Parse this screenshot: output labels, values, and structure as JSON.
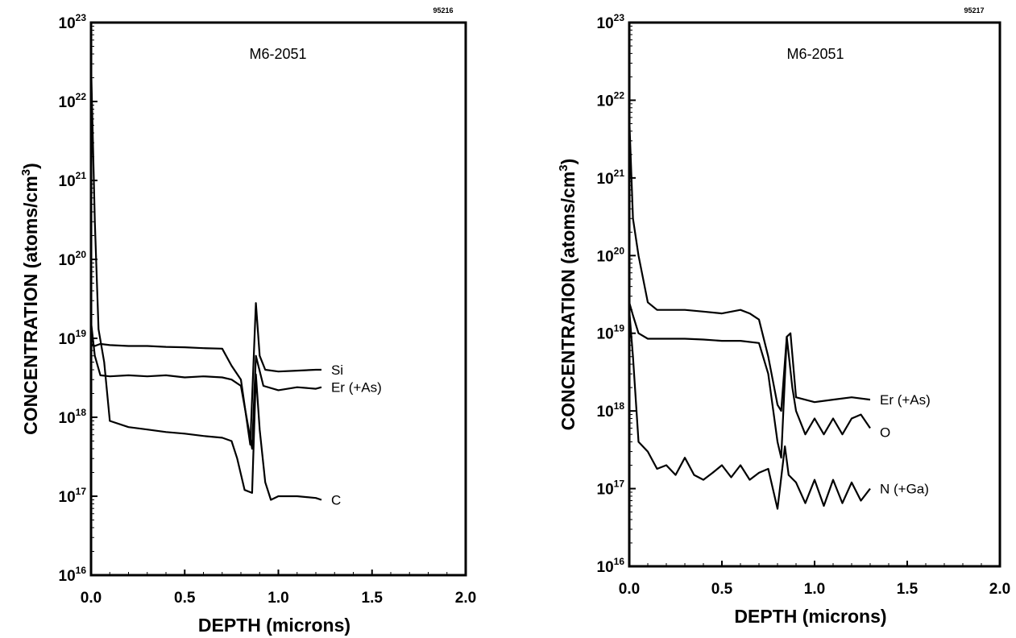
{
  "chart_data": [
    {
      "type": "line",
      "title": "M6-2051",
      "figure_id": "95216",
      "xlabel": "DEPTH (microns)",
      "ylabel": "CONCENTRATION (atoms/cm3)",
      "y_scale": "log",
      "xlim": [
        0,
        2.0
      ],
      "ylim": [
        1e+16,
        1e+23
      ],
      "x_ticks": [
        "0.0",
        "0.5",
        "1.0",
        "1.5",
        "2.0"
      ],
      "x_tick_values": [
        0,
        0.5,
        1.0,
        1.5,
        2.0
      ],
      "y_ticks": [
        {
          "base": "10",
          "exp": "16",
          "value": 1e+16
        },
        {
          "base": "10",
          "exp": "17",
          "value": 1e+17
        },
        {
          "base": "10",
          "exp": "18",
          "value": 1e+18
        },
        {
          "base": "10",
          "exp": "19",
          "value": 1e+19
        },
        {
          "base": "10",
          "exp": "20",
          "value": 1e+20
        },
        {
          "base": "10",
          "exp": "21",
          "value": 1e+21
        },
        {
          "base": "10",
          "exp": "22",
          "value": 1e+22
        },
        {
          "base": "10",
          "exp": "23",
          "value": 1e+23
        }
      ],
      "grid": false,
      "series": [
        {
          "name": "Si",
          "points": [
            [
              0.0,
              8.5e+18
            ],
            [
              0.02,
              8e+18
            ],
            [
              0.05,
              8.5e+18
            ],
            [
              0.1,
              8.2e+18
            ],
            [
              0.2,
              8e+18
            ],
            [
              0.3,
              8e+18
            ],
            [
              0.4,
              7.8e+18
            ],
            [
              0.5,
              7.7e+18
            ],
            [
              0.6,
              7.5e+18
            ],
            [
              0.7,
              7.4e+18
            ],
            [
              0.75,
              4.5e+18
            ],
            [
              0.8,
              3e+18
            ],
            [
              0.85,
              4.5e+17
            ],
            [
              0.88,
              2.8e+19
            ],
            [
              0.9,
              6e+18
            ],
            [
              0.93,
              4e+18
            ],
            [
              1.0,
              3.8e+18
            ],
            [
              1.1,
              3.9e+18
            ],
            [
              1.2,
              4e+18
            ],
            [
              1.23,
              4e+18
            ]
          ]
        },
        {
          "name": "Er (+As)",
          "points": [
            [
              0.0,
              1.6e+19
            ],
            [
              0.02,
              6e+18
            ],
            [
              0.05,
              3.4e+18
            ],
            [
              0.1,
              3.3e+18
            ],
            [
              0.2,
              3.4e+18
            ],
            [
              0.3,
              3.3e+18
            ],
            [
              0.4,
              3.4e+18
            ],
            [
              0.5,
              3.2e+18
            ],
            [
              0.6,
              3.3e+18
            ],
            [
              0.7,
              3.2e+18
            ],
            [
              0.75,
              3e+18
            ],
            [
              0.8,
              2.5e+18
            ],
            [
              0.83,
              1e+18
            ],
            [
              0.86,
              4e+17
            ],
            [
              0.88,
              6e+18
            ],
            [
              0.92,
              2.5e+18
            ],
            [
              1.0,
              2.2e+18
            ],
            [
              1.1,
              2.4e+18
            ],
            [
              1.2,
              2.3e+18
            ],
            [
              1.23,
              2.4e+18
            ]
          ]
        },
        {
          "name": "C",
          "points": [
            [
              0.0,
              3e+22
            ],
            [
              0.02,
              3e+20
            ],
            [
              0.04,
              1.3e+19
            ],
            [
              0.07,
              5e+18
            ],
            [
              0.1,
              9e+17
            ],
            [
              0.2,
              7.5e+17
            ],
            [
              0.3,
              7e+17
            ],
            [
              0.4,
              6.5e+17
            ],
            [
              0.5,
              6.2e+17
            ],
            [
              0.6,
              5.8e+17
            ],
            [
              0.7,
              5.5e+17
            ],
            [
              0.75,
              5e+17
            ],
            [
              0.78,
              3e+17
            ],
            [
              0.82,
              1.2e+17
            ],
            [
              0.86,
              1.1e+17
            ],
            [
              0.88,
              3.5e+18
            ],
            [
              0.9,
              7e+17
            ],
            [
              0.93,
              1.5e+17
            ],
            [
              0.96,
              9e+16
            ],
            [
              1.0,
              1e+17
            ],
            [
              1.1,
              1e+17
            ],
            [
              1.2,
              9.5e+16
            ],
            [
              1.23,
              9e+16
            ]
          ]
        }
      ]
    },
    {
      "type": "line",
      "title": "M6-2051",
      "figure_id": "95217",
      "xlabel": "DEPTH (microns)",
      "ylabel": "CONCENTRATION (atoms/cm3)",
      "y_scale": "log",
      "xlim": [
        0,
        2.0
      ],
      "ylim": [
        1e+16,
        1e+23
      ],
      "x_ticks": [
        "0.0",
        "0.5",
        "1.0",
        "1.5",
        "2.0"
      ],
      "x_tick_values": [
        0,
        0.5,
        1.0,
        1.5,
        2.0
      ],
      "y_ticks": [
        {
          "base": "10",
          "exp": "16",
          "value": 1e+16
        },
        {
          "base": "10",
          "exp": "17",
          "value": 1e+17
        },
        {
          "base": "10",
          "exp": "18",
          "value": 1e+18
        },
        {
          "base": "10",
          "exp": "19",
          "value": 1e+19
        },
        {
          "base": "10",
          "exp": "20",
          "value": 1e+20
        },
        {
          "base": "10",
          "exp": "21",
          "value": 1e+21
        },
        {
          "base": "10",
          "exp": "22",
          "value": 1e+22
        },
        {
          "base": "10",
          "exp": "23",
          "value": 1e+23
        }
      ],
      "grid": false,
      "series": [
        {
          "name": "Er (+As)",
          "points": [
            [
              0.0,
              6e+21
            ],
            [
              0.02,
              3e+20
            ],
            [
              0.05,
              1e+20
            ],
            [
              0.1,
              2.5e+19
            ],
            [
              0.15,
              2e+19
            ],
            [
              0.2,
              2e+19
            ],
            [
              0.3,
              2e+19
            ],
            [
              0.4,
              1.9e+19
            ],
            [
              0.5,
              1.8e+19
            ],
            [
              0.6,
              2e+19
            ],
            [
              0.65,
              1.8e+19
            ],
            [
              0.7,
              1.5e+19
            ],
            [
              0.75,
              5e+18
            ],
            [
              0.8,
              1.2e+18
            ],
            [
              0.82,
              1e+18
            ],
            [
              0.85,
              9e+18
            ],
            [
              0.87,
              1e+19
            ],
            [
              0.9,
              1.5e+18
            ],
            [
              1.0,
              1.3e+18
            ],
            [
              1.1,
              1.4e+18
            ],
            [
              1.2,
              1.5e+18
            ],
            [
              1.3,
              1.4e+18
            ]
          ]
        },
        {
          "name": "O",
          "points": [
            [
              0.0,
              2.5e+19
            ],
            [
              0.02,
              1.7e+19
            ],
            [
              0.05,
              1e+19
            ],
            [
              0.1,
              8.5e+18
            ],
            [
              0.2,
              8.5e+18
            ],
            [
              0.3,
              8.5e+18
            ],
            [
              0.4,
              8.3e+18
            ],
            [
              0.5,
              8e+18
            ],
            [
              0.6,
              8e+18
            ],
            [
              0.7,
              7.5e+18
            ],
            [
              0.75,
              3e+18
            ],
            [
              0.8,
              4e+17
            ],
            [
              0.82,
              2.5e+17
            ],
            [
              0.85,
              9e+18
            ],
            [
              0.88,
              2e+18
            ],
            [
              0.9,
              1e+18
            ],
            [
              0.95,
              5e+17
            ],
            [
              1.0,
              8e+17
            ],
            [
              1.05,
              5e+17
            ],
            [
              1.1,
              8e+17
            ],
            [
              1.15,
              5e+17
            ],
            [
              1.2,
              8e+17
            ],
            [
              1.25,
              9e+17
            ],
            [
              1.3,
              6e+17
            ]
          ]
        },
        {
          "name": "N (+Ga)",
          "points": [
            [
              0.0,
              2e+19
            ],
            [
              0.02,
              5e+18
            ],
            [
              0.05,
              4e+17
            ],
            [
              0.1,
              3e+17
            ],
            [
              0.15,
              1.8e+17
            ],
            [
              0.2,
              2e+17
            ],
            [
              0.25,
              1.5e+17
            ],
            [
              0.3,
              2.5e+17
            ],
            [
              0.35,
              1.5e+17
            ],
            [
              0.4,
              1.3e+17
            ],
            [
              0.45,
              1.6e+17
            ],
            [
              0.5,
              2e+17
            ],
            [
              0.55,
              1.4e+17
            ],
            [
              0.6,
              2e+17
            ],
            [
              0.65,
              1.3e+17
            ],
            [
              0.7,
              1.6e+17
            ],
            [
              0.75,
              1.8e+17
            ],
            [
              0.8,
              5.5e+16
            ],
            [
              0.84,
              3.5e+17
            ],
            [
              0.86,
              1.5e+17
            ],
            [
              0.9,
              1.2e+17
            ],
            [
              0.95,
              6.5e+16
            ],
            [
              1.0,
              1.3e+17
            ],
            [
              1.05,
              6e+16
            ],
            [
              1.1,
              1.3e+17
            ],
            [
              1.15,
              6.5e+16
            ],
            [
              1.2,
              1.2e+17
            ],
            [
              1.25,
              7e+16
            ],
            [
              1.3,
              1e+17
            ]
          ]
        }
      ]
    }
  ]
}
